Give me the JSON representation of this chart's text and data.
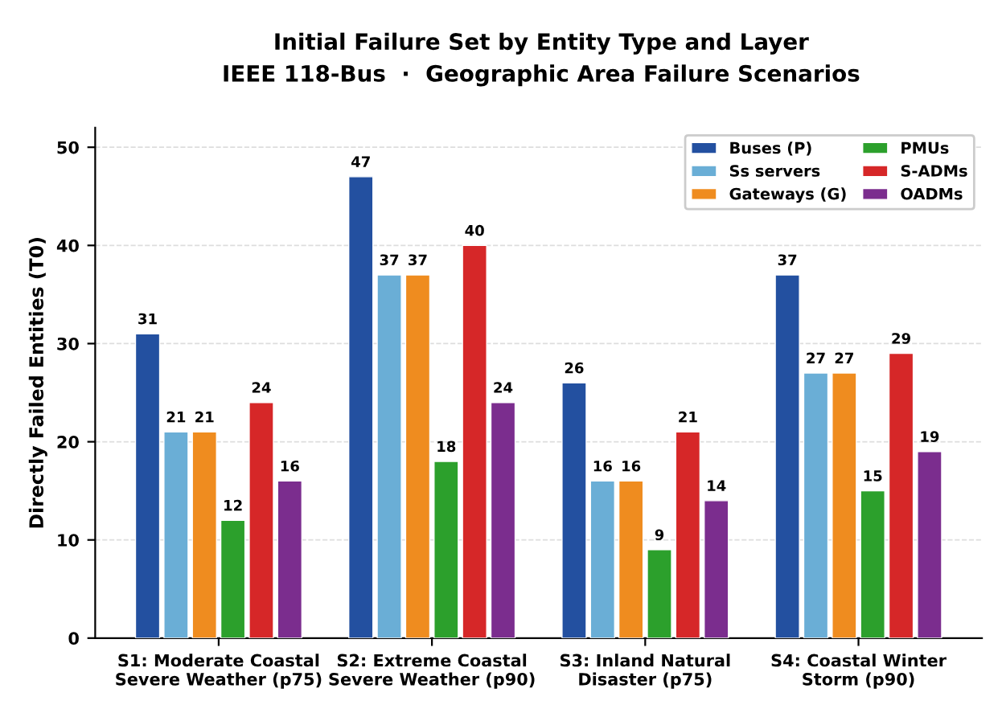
{
  "chart_data": {
    "type": "bar",
    "title": "Initial Failure Set by Entity Type and Layer",
    "subtitle": "IEEE 118-Bus  ·  Geographic Area Failure Scenarios",
    "ylabel": "Directly Failed Entities (T0)",
    "categories": [
      "S1: Moderate Coastal\nSevere Weather (p75)",
      "S2: Extreme Coastal\nSevere Weather (p90)",
      "S3: Inland Natural\nDisaster (p75)",
      "S4: Coastal Winter\nStorm (p90)"
    ],
    "series": [
      {
        "name": "Buses (P)",
        "color": "#2350a0",
        "values": [
          31,
          47,
          26,
          37
        ]
      },
      {
        "name": "Ss servers",
        "color": "#6aaed6",
        "values": [
          21,
          37,
          16,
          27
        ]
      },
      {
        "name": "Gateways (G)",
        "color": "#ef8c1f",
        "values": [
          21,
          37,
          16,
          27
        ]
      },
      {
        "name": "PMUs",
        "color": "#2ca02c",
        "values": [
          12,
          18,
          9,
          15
        ]
      },
      {
        "name": "S-ADMs",
        "color": "#d62728",
        "values": [
          24,
          40,
          21,
          29
        ]
      },
      {
        "name": "OADMs",
        "color": "#7b2d8e",
        "values": [
          16,
          24,
          14,
          19
        ]
      }
    ],
    "ylim": [
      0,
      52
    ],
    "yticks": [
      0,
      10,
      20,
      30,
      40,
      50
    ],
    "grid": "y",
    "legend": "top right",
    "data_labels": true
  }
}
